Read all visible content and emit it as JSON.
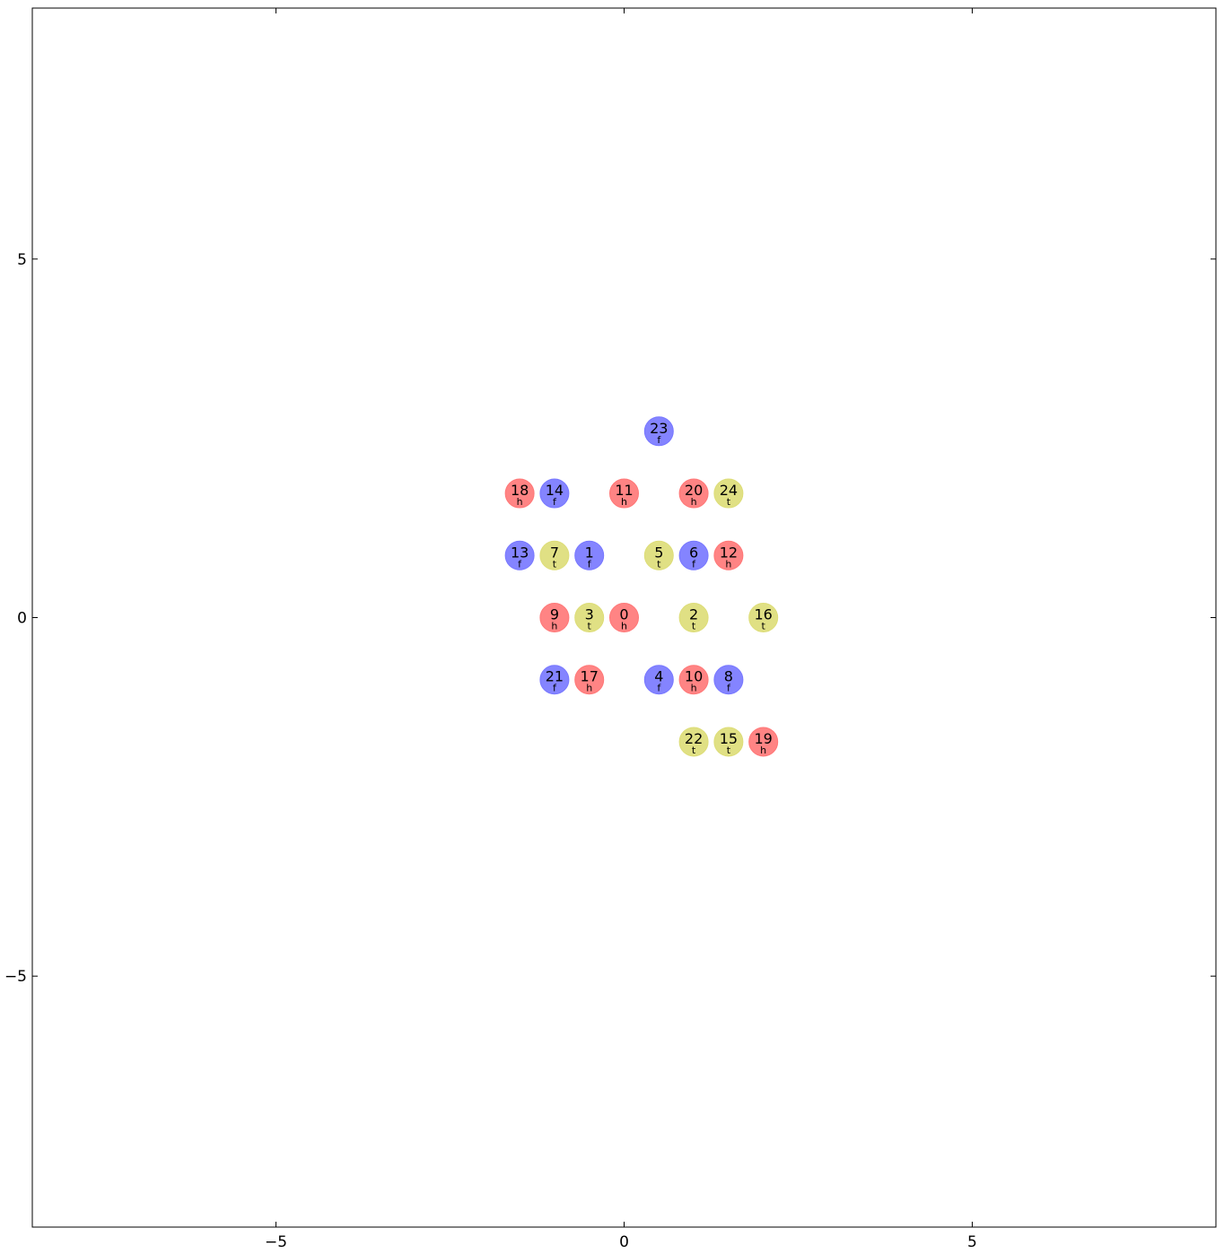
{
  "chart_data": {
    "type": "scatter",
    "title": "",
    "xlabel": "",
    "ylabel": "",
    "xlim": [
      -8.5,
      8.5
    ],
    "ylim": [
      -8.5,
      8.5
    ],
    "grid": false,
    "x_ticks": [
      {
        "value": -5,
        "label": "−5"
      },
      {
        "value": 0,
        "label": "0"
      },
      {
        "value": 5,
        "label": "5"
      }
    ],
    "y_ticks": [
      {
        "value": 5,
        "label": "5"
      },
      {
        "value": 0,
        "label": "0"
      },
      {
        "value": -5,
        "label": "−5"
      }
    ],
    "lattice": {
      "basis_a": [
        0.5,
        0.866025
      ],
      "basis_b": [
        1.0,
        0.0
      ],
      "description_note": ""
    },
    "series": [
      {
        "category": "f",
        "color": "#7777ff"
      },
      {
        "category": "h",
        "color": "#ff7777"
      },
      {
        "category": "t",
        "color": "#dddd77"
      }
    ],
    "points": [
      {
        "id": "0",
        "a": 0,
        "b": 0,
        "type": "h"
      },
      {
        "id": "1",
        "a": 1,
        "b": -1,
        "type": "f"
      },
      {
        "id": "2",
        "a": 0,
        "b": 1,
        "type": "t"
      },
      {
        "id": "3",
        "a": 0,
        "b": 0,
        "type": "t",
        "dx": -0.5
      },
      {
        "id": "4",
        "a": -1,
        "b": 1,
        "type": "f"
      },
      {
        "id": "5",
        "a": 1,
        "b": 0,
        "type": "t"
      },
      {
        "id": "6",
        "a": 1,
        "b": 0,
        "type": "f",
        "dx": 0.5
      },
      {
        "id": "7",
        "a": 1,
        "b": -1,
        "type": "t",
        "dx": -0.5
      },
      {
        "id": "8",
        "a": -1,
        "b": 2,
        "type": "f"
      },
      {
        "id": "9",
        "a": 0,
        "b": -1,
        "type": "h"
      },
      {
        "id": "10",
        "a": -1,
        "b": 1,
        "type": "h",
        "dx": 0.5
      },
      {
        "id": "11",
        "a": 2,
        "b": -1,
        "type": "h"
      },
      {
        "id": "12",
        "a": 1,
        "b": 1,
        "type": "h"
      },
      {
        "id": "13",
        "a": 1,
        "b": -2,
        "type": "f"
      },
      {
        "id": "14",
        "a": 2,
        "b": -2,
        "type": "f"
      },
      {
        "id": "15",
        "a": -2,
        "b": 2,
        "type": "t",
        "dx": 0.5
      },
      {
        "id": "16",
        "a": 0,
        "b": 2,
        "type": "t"
      },
      {
        "id": "17",
        "a": -1,
        "b": 0,
        "type": "h"
      },
      {
        "id": "18",
        "a": 2,
        "b": -2,
        "type": "h",
        "dx": -0.5
      },
      {
        "id": "19",
        "a": -2,
        "b": 3,
        "type": "h"
      },
      {
        "id": "20",
        "a": 2,
        "b": 0,
        "type": "h"
      },
      {
        "id": "21",
        "a": -1,
        "b": 0,
        "type": "f",
        "dx": -0.5
      },
      {
        "id": "22",
        "a": -2,
        "b": 2,
        "type": "t"
      },
      {
        "id": "23",
        "a": 3,
        "b": -1,
        "type": "f"
      },
      {
        "id": "24",
        "a": 2,
        "b": 0,
        "type": "t",
        "dx": 0.5
      }
    ],
    "labels": {
      "f": "f",
      "h": "h",
      "t": "t"
    }
  }
}
